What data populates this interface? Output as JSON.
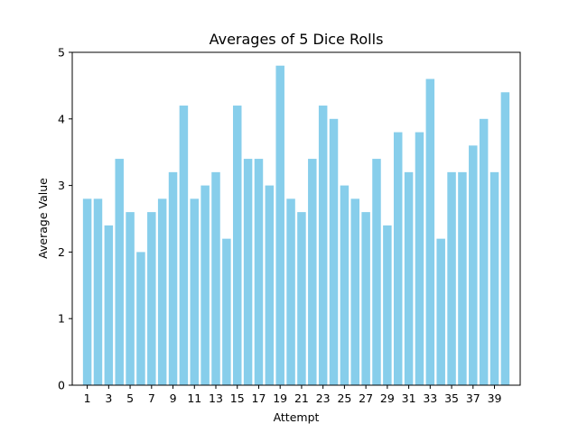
{
  "chart_data": {
    "type": "bar",
    "title": "Averages of 5 Dice Rolls",
    "xlabel": "Attempt",
    "ylabel": "Average Value",
    "x": [
      1,
      2,
      3,
      4,
      5,
      6,
      7,
      8,
      9,
      10,
      11,
      12,
      13,
      14,
      15,
      16,
      17,
      18,
      19,
      20,
      21,
      22,
      23,
      24,
      25,
      26,
      27,
      28,
      29,
      30,
      31,
      32,
      33,
      34,
      35,
      36,
      37,
      38,
      39,
      40
    ],
    "values": [
      2.8,
      2.8,
      2.4,
      3.4,
      2.6,
      2.0,
      2.6,
      2.8,
      3.2,
      4.2,
      2.8,
      3.0,
      3.2,
      2.2,
      4.2,
      3.4,
      3.4,
      3.0,
      4.8,
      2.8,
      2.6,
      3.4,
      4.2,
      4.0,
      3.0,
      2.8,
      2.6,
      3.4,
      2.4,
      3.8,
      3.2,
      3.8,
      4.6,
      2.2,
      3.2,
      3.2,
      3.6,
      4.0,
      3.2,
      4.4
    ],
    "xticks": [
      1,
      3,
      5,
      7,
      9,
      11,
      13,
      15,
      17,
      19,
      21,
      23,
      25,
      27,
      29,
      31,
      33,
      35,
      37,
      39
    ],
    "yticks": [
      0,
      1,
      2,
      3,
      4,
      5
    ],
    "ylim": [
      0,
      5.0
    ],
    "grid": false,
    "bar_color": "#87ceeb"
  }
}
